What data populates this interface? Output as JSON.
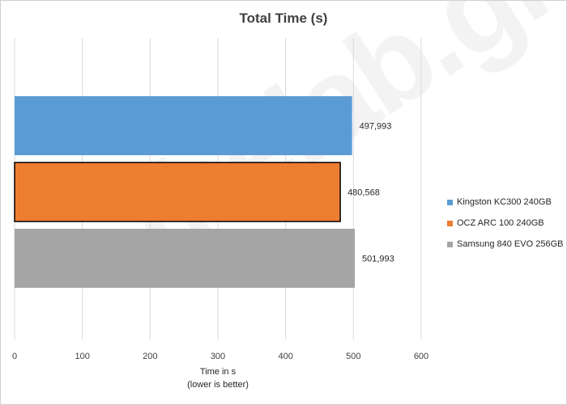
{
  "chart_data": {
    "type": "bar",
    "orientation": "horizontal",
    "title": "Total Time (s)",
    "xlabel_line1": "Time in s",
    "xlabel_line2": "(lower is better)",
    "xlim": [
      0,
      600
    ],
    "x_ticks": [
      "0",
      "100",
      "200",
      "300",
      "400",
      "500",
      "600"
    ],
    "grid": "vertical",
    "legend_position": "right",
    "series": [
      {
        "name": "Kingston KC300 240GB",
        "value": 497.993,
        "label": "497,993",
        "color": "#5B9BD5"
      },
      {
        "name": "OCZ ARC 100 240GB",
        "value": 480.568,
        "label": "480,568",
        "color": "#ED7D31"
      },
      {
        "name": "Samsung 840 EVO 256GB",
        "value": 501.993,
        "label": "501,993",
        "color": "#A5A5A5"
      }
    ]
  },
  "watermark": "thelab.gr"
}
